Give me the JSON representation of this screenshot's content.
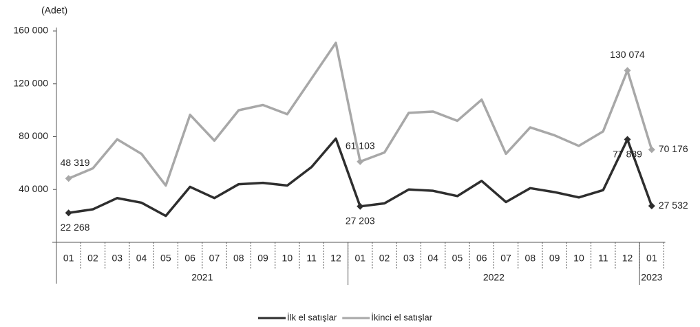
{
  "chart_data": {
    "type": "line",
    "unit_label": "(Adet)",
    "categories": [
      "01",
      "02",
      "03",
      "04",
      "05",
      "06",
      "07",
      "08",
      "09",
      "10",
      "11",
      "12",
      "01",
      "02",
      "03",
      "04",
      "05",
      "06",
      "07",
      "08",
      "09",
      "10",
      "11",
      "12",
      "01"
    ],
    "year_labels": [
      "2021",
      "2022",
      "2023"
    ],
    "ylim": [
      0,
      160000
    ],
    "yticks": [
      {
        "value": 40000,
        "label": "40 000"
      },
      {
        "value": 80000,
        "label": "80 000"
      },
      {
        "value": 120000,
        "label": "120 000"
      },
      {
        "value": 160000,
        "label": "160 000"
      }
    ],
    "grid": false,
    "legend": "bottom",
    "series": [
      {
        "name": "İlk el satışlar",
        "color": "#2e2e2e",
        "values": [
          22268,
          25000,
          33500,
          30000,
          20000,
          42000,
          33500,
          44000,
          45000,
          43000,
          57000,
          78500,
          27203,
          29500,
          40000,
          39000,
          35000,
          46500,
          30500,
          41000,
          38000,
          34000,
          39500,
          77889,
          27532
        ],
        "value_labels": [
          "22 268",
          null,
          null,
          null,
          null,
          null,
          null,
          null,
          null,
          null,
          null,
          null,
          "27 203",
          null,
          null,
          null,
          null,
          null,
          null,
          null,
          null,
          null,
          null,
          "77 889",
          "27 532"
        ]
      },
      {
        "name": "İkinci el satışlar",
        "color": "#a8a8a8",
        "values": [
          48319,
          56000,
          78000,
          67000,
          43000,
          96500,
          77000,
          100000,
          104000,
          97000,
          124000,
          151000,
          61103,
          68000,
          98000,
          99000,
          92000,
          108000,
          67000,
          87000,
          81000,
          73000,
          84000,
          130074,
          70176
        ],
        "value_labels": [
          "48 319",
          null,
          null,
          null,
          null,
          null,
          null,
          null,
          null,
          null,
          null,
          null,
          "61 103",
          null,
          null,
          null,
          null,
          null,
          null,
          null,
          null,
          null,
          null,
          "130 074",
          "70 176"
        ]
      }
    ]
  }
}
